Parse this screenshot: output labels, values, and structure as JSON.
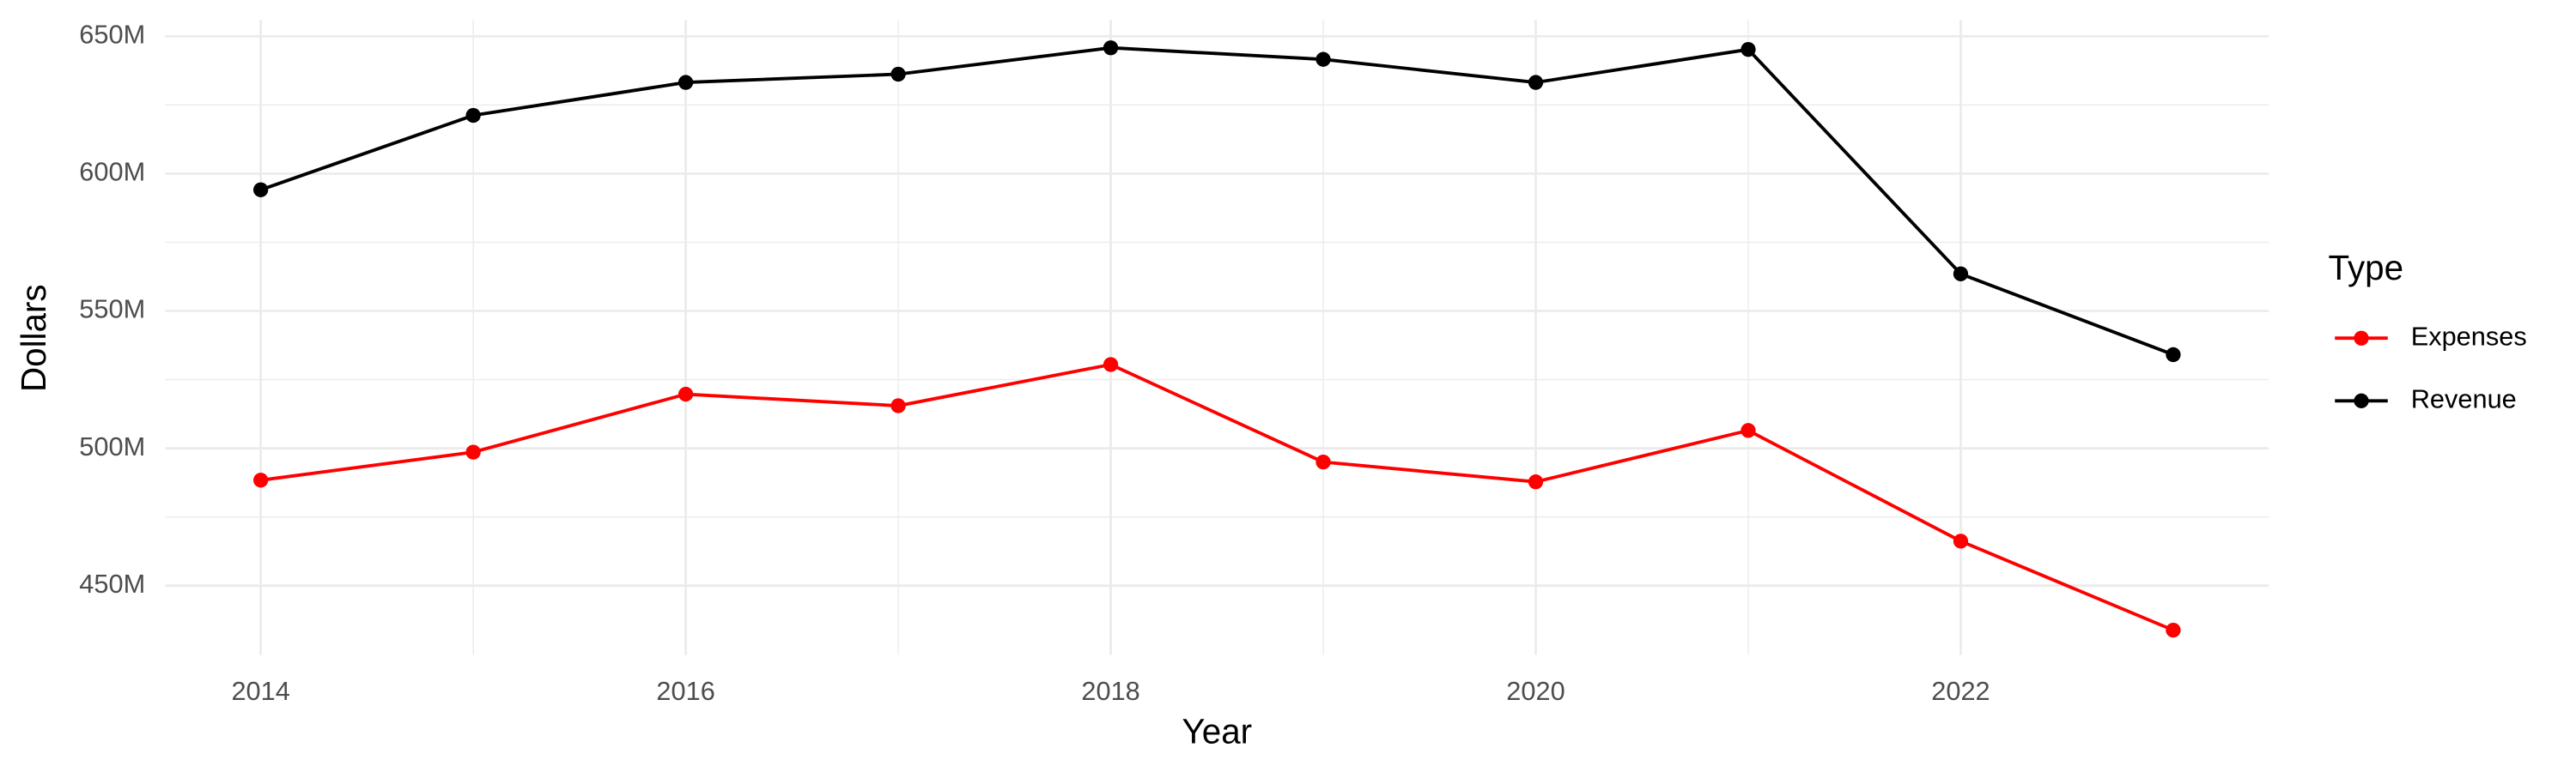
{
  "chart_data": {
    "type": "line",
    "x_label": "Year",
    "y_label": "Dollars",
    "x": [
      2014,
      2015,
      2016,
      2017,
      2018,
      2019,
      2020,
      2021,
      2022,
      2023
    ],
    "series": [
      {
        "name": "Expenses",
        "color": "#ff0000",
        "values": [
          488400000,
          498600000,
          519700000,
          515500000,
          530500000,
          495000000,
          487800000,
          506500000,
          466200000,
          433800000
        ]
      },
      {
        "name": "Revenue",
        "color": "#000000",
        "values": [
          594100000,
          621200000,
          633200000,
          636200000,
          645800000,
          641600000,
          633200000,
          645200000,
          563500000,
          534100000
        ]
      }
    ],
    "xlim": [
      2013.55,
      2023.45
    ],
    "xticks": [
      2014,
      2016,
      2018,
      2020,
      2022
    ],
    "ylim": [
      424800000,
      656000000
    ],
    "yticks": [
      {
        "value": 450000000,
        "label": "450M"
      },
      {
        "value": 500000000,
        "label": "500M"
      },
      {
        "value": 550000000,
        "label": "550M"
      },
      {
        "value": 600000000,
        "label": "600M"
      },
      {
        "value": 650000000,
        "label": "650M"
      }
    ],
    "grid": true,
    "legend_title": "Type",
    "legend_position": "right"
  }
}
